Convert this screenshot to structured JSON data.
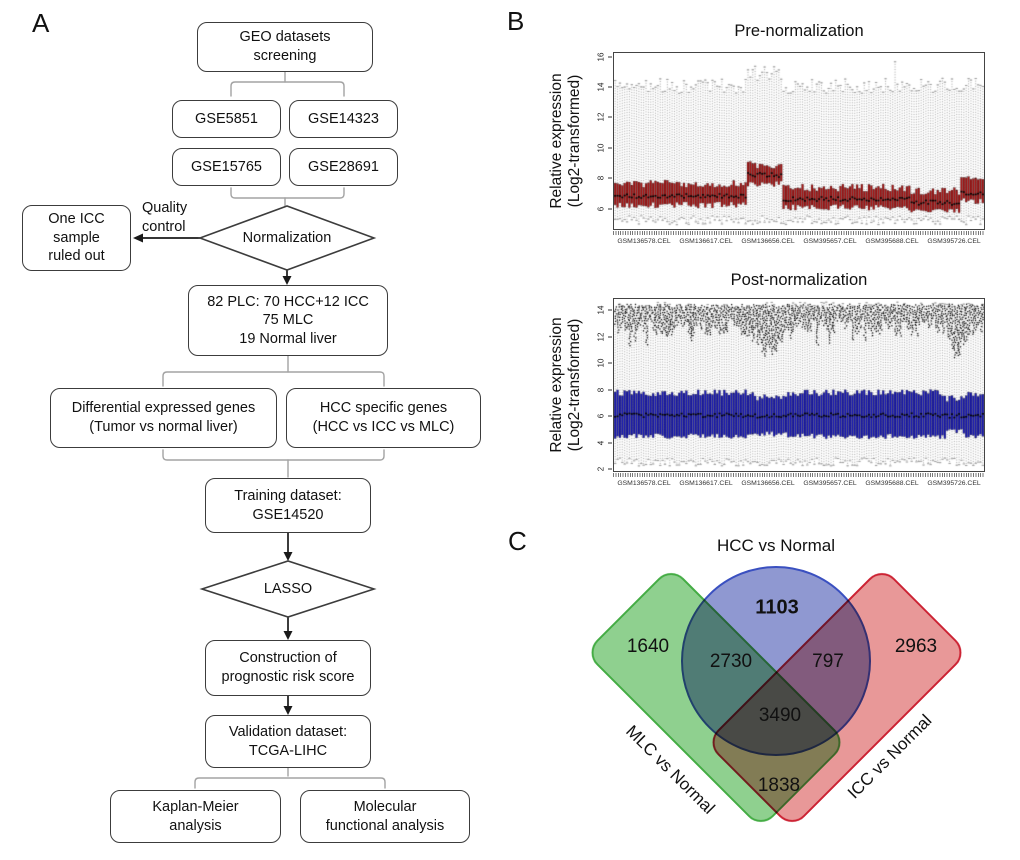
{
  "figure": {
    "panel_a_label": "A",
    "panel_b_label": "B",
    "panel_c_label": "C"
  },
  "flowchart": {
    "nodes": {
      "geo": "GEO datasets\nscreening",
      "gse5851": "GSE5851",
      "gse14323": "GSE14323",
      "gse15765": "GSE15765",
      "gse28691": "GSE28691",
      "quality_control": "Quality\ncontrol",
      "ruled_out": "One ICC\nsample\nruled out",
      "normalization": "Normalization",
      "plc": "82 PLC: 70 HCC+12 ICC\n75 MLC\n19 Normal liver",
      "deg": "Differential expressed genes\n(Tumor vs normal liver)",
      "hcc_specific": "HCC specific genes\n(HCC vs ICC vs MLC)",
      "training": "Training dataset:\nGSE14520",
      "lasso": "LASSO",
      "construction": "Construction of\nprognostic risk score",
      "validation": "Validation dataset:\nTCGA-LIHC",
      "km": "Kaplan-Meier\nanalysis",
      "molecular": "Molecular\nfunctional analysis"
    }
  },
  "chart_data": [
    {
      "type": "boxplot",
      "title": "Pre-normalization",
      "ylabel": "Relative expression\n(Log2-transformed)",
      "yticks": [
        6,
        8,
        10,
        12,
        14,
        16
      ],
      "ylim": [
        4.6,
        16.3
      ],
      "x_tick_labels": [
        "GSM136578.CEL",
        "GSM136617.CEL",
        "GSM136656.CEL",
        "GSM395657.CEL",
        "GSM395688.CEL",
        "GSM395726.CEL"
      ],
      "n_samples": 156,
      "seed": 11,
      "box_color": "#a81111",
      "whisker_color": "#9a9a9a",
      "whisker_low": 5.15,
      "whisker_high": 14.15,
      "max_spike": {
        "frac": 0.76,
        "value": 15.75
      },
      "segments": [
        {
          "from": 0.0,
          "to": 0.36,
          "median": 6.8,
          "q1": 6.2,
          "q3": 7.6
        },
        {
          "from": 0.36,
          "to": 0.455,
          "median": 8.2,
          "q1": 7.6,
          "q3": 8.85,
          "whisker_high": 15.0
        },
        {
          "from": 0.455,
          "to": 0.8,
          "median": 6.6,
          "q1": 6.05,
          "q3": 7.35
        },
        {
          "from": 0.8,
          "to": 0.94,
          "median": 6.35,
          "q1": 5.85,
          "q3": 7.1
        },
        {
          "from": 0.94,
          "to": 1.0,
          "median": 7.0,
          "q1": 6.45,
          "q3": 7.9
        }
      ]
    },
    {
      "type": "boxplot",
      "title": "Post-normalization",
      "ylabel": "Relative expression\n(Log2-transformed)",
      "yticks": [
        2,
        4,
        6,
        8,
        10,
        12,
        14
      ],
      "ylim": [
        1.8,
        14.9
      ],
      "x_tick_labels": [
        "GSM136578.CEL",
        "GSM136617.CEL",
        "GSM136656.CEL",
        "GSM395657.CEL",
        "GSM395688.CEL",
        "GSM395726.CEL"
      ],
      "n_samples": 156,
      "seed": 23,
      "box_color": "#1515b5",
      "whisker_color": "#9a9a9a",
      "whisker_low": 2.45,
      "whisker_high": 14.2,
      "segments": [
        {
          "from": 0.0,
          "to": 0.38,
          "median": 6.05,
          "q1": 4.45,
          "q3": 7.75
        },
        {
          "from": 0.38,
          "to": 0.47,
          "median": 6.0,
          "q1": 4.6,
          "q3": 7.4
        },
        {
          "from": 0.47,
          "to": 0.9,
          "median": 6.05,
          "q1": 4.45,
          "q3": 7.75
        },
        {
          "from": 0.9,
          "to": 0.95,
          "median": 6.0,
          "q1": 4.8,
          "q3": 7.3
        },
        {
          "from": 0.95,
          "to": 1.0,
          "median": 6.05,
          "q1": 4.5,
          "q3": 7.6
        }
      ],
      "outlier_band": {
        "top": 14.4,
        "bottom_typical": 12.7,
        "dips": [
          {
            "frac": 0.42,
            "bottom": 11.0,
            "width": 0.045
          },
          {
            "frac": 0.93,
            "bottom": 10.7,
            "width": 0.02
          }
        ]
      }
    },
    {
      "type": "venn",
      "sets": [
        "HCC vs Normal",
        "MLC vs Normal",
        "ICC vs Normal"
      ],
      "regions": {
        "HCC_only": "1103",
        "MLC_only": "1640",
        "ICC_only": "2963",
        "HCC_MLC": "2730",
        "HCC_ICC": "797",
        "MLC_ICC": "1838",
        "all_three": "3490"
      },
      "colors": {
        "HCC": "#868fcd",
        "MLC": "#85cc85",
        "ICC": "#e68f8f"
      }
    }
  ]
}
